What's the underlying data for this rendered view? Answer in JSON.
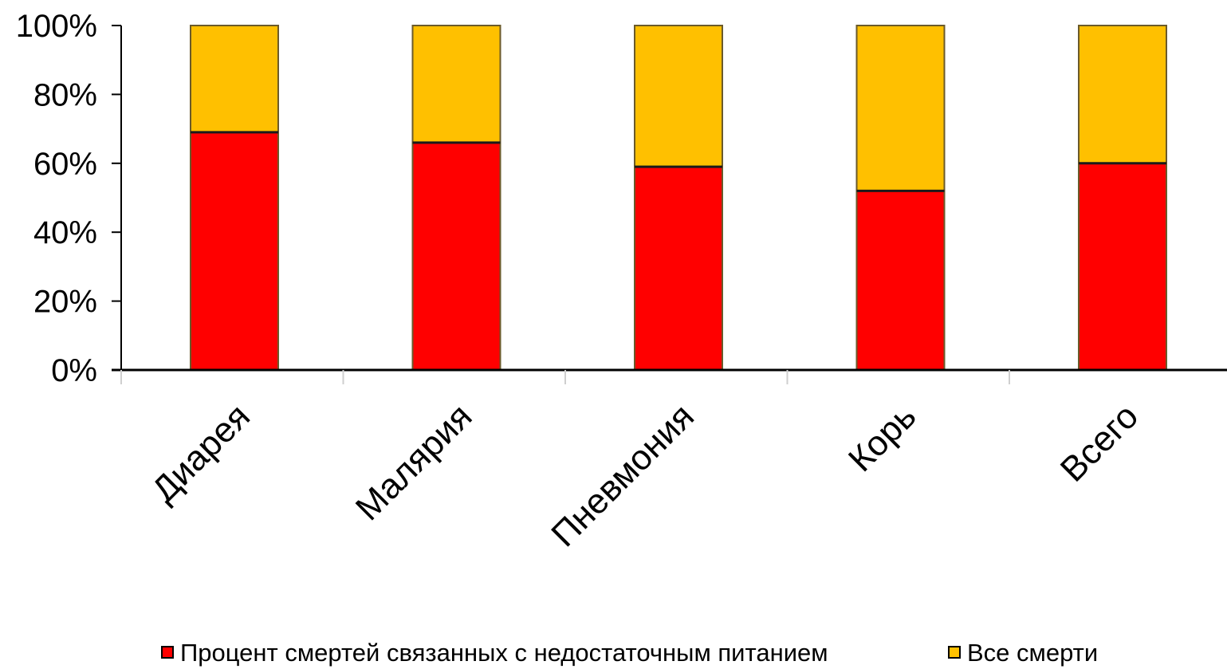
{
  "chart_data": {
    "type": "bar",
    "stacked": true,
    "categories": [
      "Диарея",
      "Малярия",
      "Пневмония",
      "Корь",
      "Всего"
    ],
    "series": [
      {
        "name": "Процент смертей связанных с недостаточным питанием",
        "values": [
          69,
          66,
          59,
          52,
          60
        ],
        "color": "#ff0000"
      },
      {
        "name": "Все смерти",
        "values": [
          31,
          34,
          41,
          48,
          40
        ],
        "color": "#ffc000"
      }
    ],
    "ylim": [
      0,
      100
    ],
    "y_ticks": [
      "0%",
      "20%",
      "40%",
      "60%",
      "80%",
      "100%"
    ],
    "grid": false,
    "legend": "bottom",
    "title": "",
    "xlabel": "",
    "ylabel": ""
  }
}
